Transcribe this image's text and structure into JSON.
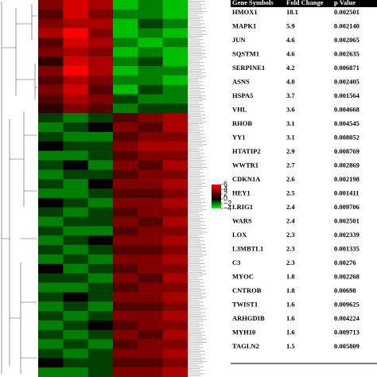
{
  "chart_data": {
    "type": "heatmap",
    "zlim": [
      -4,
      6
    ],
    "values": [
      [
        3,
        5,
        4,
        -3,
        -2,
        -3
      ],
      [
        2,
        5,
        3,
        -2,
        -2,
        -3
      ],
      [
        3,
        4,
        4,
        -3,
        -1,
        -2
      ],
      [
        4,
        6,
        3,
        -3,
        -2,
        -3
      ],
      [
        2,
        5,
        4,
        -2,
        -3,
        -2
      ],
      [
        3,
        4,
        3,
        -3,
        -2,
        -3
      ],
      [
        1,
        5,
        4,
        -2,
        -1,
        -3
      ],
      [
        3,
        6,
        4,
        -3,
        -2,
        -2
      ],
      [
        2,
        4,
        3,
        -2,
        -2,
        -3
      ],
      [
        3,
        5,
        2,
        -3,
        -1,
        -2
      ],
      [
        2,
        4,
        3,
        -1,
        -2,
        -2
      ],
      [
        1,
        3,
        2,
        -2,
        -1,
        -1
      ],
      [
        -1,
        -2,
        -1,
        2,
        3,
        4
      ],
      [
        -2,
        -1,
        0,
        3,
        2,
        4
      ],
      [
        -1,
        -2,
        -2,
        2,
        3,
        3
      ],
      [
        0,
        -1,
        -1,
        3,
        4,
        4
      ],
      [
        -2,
        -2,
        -1,
        2,
        3,
        3
      ],
      [
        -1,
        0,
        -2,
        3,
        2,
        4
      ],
      [
        -2,
        -1,
        -1,
        2,
        3,
        3
      ],
      [
        -1,
        -2,
        0,
        3,
        3,
        4
      ],
      [
        -2,
        -2,
        -1,
        2,
        2,
        3
      ],
      [
        0,
        -1,
        -2,
        3,
        3,
        4
      ],
      [
        -1,
        -2,
        -1,
        2,
        3,
        3
      ],
      [
        -2,
        -1,
        -1,
        3,
        2,
        4
      ],
      [
        -1,
        -2,
        -2,
        2,
        3,
        3
      ],
      [
        -2,
        -1,
        0,
        3,
        3,
        4
      ],
      [
        -1,
        -2,
        -1,
        2,
        2,
        3
      ],
      [
        -2,
        -1,
        -2,
        3,
        3,
        4
      ],
      [
        0,
        -2,
        -1,
        2,
        3,
        3
      ],
      [
        -1,
        -1,
        -2,
        3,
        2,
        4
      ],
      [
        -2,
        -2,
        -1,
        2,
        3,
        3
      ],
      [
        -1,
        0,
        -1,
        3,
        3,
        4
      ],
      [
        -2,
        -1,
        -2,
        2,
        2,
        3
      ],
      [
        -1,
        -2,
        -1,
        3,
        3,
        4
      ],
      [
        -2,
        -1,
        0,
        2,
        3,
        3
      ],
      [
        -1,
        -2,
        -1,
        3,
        2,
        4
      ],
      [
        -2,
        -1,
        -2,
        2,
        3,
        3
      ],
      [
        -1,
        -2,
        -1,
        3,
        3,
        4
      ],
      [
        0,
        -1,
        -1,
        2,
        2,
        3
      ],
      [
        -2,
        -2,
        -1,
        3,
        3,
        4
      ]
    ],
    "colorbar_ticks": [
      6,
      4,
      2,
      0,
      {
        "value": -2,
        "label": "−2"
      },
      {
        "value": -4,
        "label": "−4"
      }
    ]
  },
  "table": {
    "header": [
      "Gene Symbols",
      "Fold Change",
      "p Value"
    ],
    "rows": [
      [
        "HMOX1",
        "18.1",
        "0.002501"
      ],
      [
        "MAPK1",
        "5.9",
        "0.002140"
      ],
      [
        "JUN",
        "4.6",
        "0.002065"
      ],
      [
        "SQSTM1",
        "4.6",
        "0.002635"
      ],
      [
        "SERPINE1",
        "4.2",
        "0.006871"
      ],
      [
        "ASNS",
        "4.0",
        "0.002405"
      ],
      [
        "HSPA5",
        "3.7",
        "0.001564"
      ],
      [
        "VHL",
        "3.6",
        "0.004668"
      ],
      [
        "RHOB",
        "3.1",
        "0.004545"
      ],
      [
        "YY1",
        "3.1",
        "0.008052"
      ],
      [
        "HTATIP2",
        "2.9",
        "0.008769"
      ],
      [
        "WWTR1",
        "2.7",
        "0.002869"
      ],
      [
        "CDKN1A",
        "2.6",
        "0.002198"
      ],
      [
        "HEY1",
        "2.5",
        "0.001411"
      ],
      [
        "LRIG1",
        "2.4",
        "0.009706"
      ],
      [
        "WARS",
        "2.4",
        "0.002501"
      ],
      [
        "LOX",
        "2.3",
        "0.002339"
      ],
      [
        "L3MBTL1",
        "2.3",
        "0.001335"
      ],
      [
        "C3",
        "2.3",
        "0.00276"
      ],
      [
        "MYOC",
        "1.8",
        "0.002268"
      ],
      [
        "CNTROB",
        "1.8",
        "0.00698"
      ],
      [
        "TWIST1",
        "1.6",
        "0.009625"
      ],
      [
        "ARHGDIB",
        "1.6",
        "0.004224"
      ],
      [
        "MYH10",
        "1.6",
        "0.009713"
      ],
      [
        "TAGLN2",
        "1.5",
        "0.005809"
      ]
    ]
  }
}
